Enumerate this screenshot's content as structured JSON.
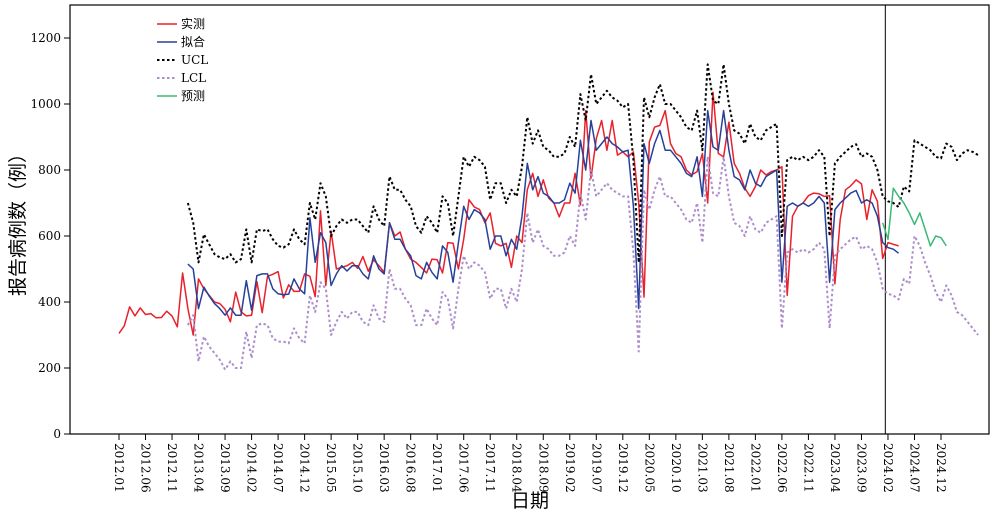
{
  "chart_data": {
    "type": "line",
    "xlabel": "日期",
    "ylabel": "报告病例数（例）",
    "ylim": [
      0,
      1300
    ],
    "yticks": [
      0,
      200,
      400,
      600,
      800,
      1000,
      1200
    ],
    "x_start": "2012.01",
    "x_end": "2024.12",
    "xtick_labels": [
      "2012.01",
      "2012.06",
      "2012.11",
      "2013.04",
      "2013.09",
      "2014.02",
      "2014.07",
      "2014.12",
      "2015.05",
      "2015.10",
      "2016.03",
      "2016.08",
      "2017.01",
      "2017.06",
      "2017.11",
      "2018.04",
      "2018.09",
      "2019.02",
      "2019.07",
      "2019.12",
      "2020.05",
      "2020.10",
      "2021.03",
      "2021.08",
      "2022.01",
      "2022.06",
      "2022.11",
      "2023.04",
      "2023.09",
      "2024.02",
      "2024.07",
      "2024.12"
    ],
    "forecast_start": "2024.01",
    "grid": false,
    "legend_position": "top-left",
    "series": [
      {
        "name": "实测",
        "color": "#e8212b",
        "dash": "solid",
        "start": "2012.01",
        "values": [
          305,
          328,
          385,
          358,
          382,
          362,
          365,
          352,
          353,
          372,
          358,
          325,
          488,
          380,
          300,
          470,
          440,
          420,
          400,
          395,
          378,
          340,
          430,
          370,
          358,
          360,
          462,
          368,
          478,
          484,
          492,
          412,
          452,
          432,
          432,
          485,
          478,
          416,
          676,
          450,
          615,
          500,
          505,
          510,
          520,
          502,
          538,
          493,
          528,
          510,
          490,
          640,
          600,
          612,
          560,
          530,
          520,
          505,
          488,
          530,
          528,
          488,
          580,
          578,
          500,
          590,
          710,
          688,
          680,
          640,
          670,
          578,
          570,
          578,
          505,
          600,
          580,
          740,
          790,
          720,
          770,
          715,
          700,
          658,
          700,
          700,
          790,
          694,
          980,
          775,
          895,
          950,
          860,
          950,
          845,
          855,
          840,
          855,
          700,
          415,
          885,
          930,
          935,
          980,
          880,
          850,
          840,
          800,
          785,
          795,
          850,
          700,
          1035,
          850,
          840,
          945,
          820,
          790,
          745,
          720,
          750,
          800,
          785,
          795,
          800,
          810,
          420,
          660,
          690,
          700,
          722,
          730,
          728,
          720,
          722,
          455,
          650,
          740,
          752,
          770,
          758,
          650,
          740,
          705,
          532,
          580,
          575,
          570
        ]
      },
      {
        "name": "拟合",
        "color": "#26419a",
        "dash": "solid",
        "start": "2013.02",
        "values": [
          515,
          500,
          380,
          445,
          418,
          395,
          380,
          360,
          382,
          360,
          360,
          465,
          375,
          480,
          485,
          485,
          440,
          425,
          422,
          424,
          470,
          440,
          425,
          655,
          520,
          610,
          580,
          450,
          485,
          510,
          494,
          510,
          510,
          485,
          470,
          540,
          500,
          485,
          640,
          590,
          590,
          560,
          540,
          480,
          470,
          520,
          490,
          470,
          570,
          550,
          460,
          580,
          690,
          650,
          680,
          670,
          650,
          560,
          600,
          600,
          540,
          590,
          560,
          660,
          820,
          740,
          780,
          730,
          720,
          700,
          700,
          710,
          760,
          730,
          890,
          800,
          950,
          860,
          880,
          900,
          880,
          870,
          855,
          860,
          690,
          380,
          880,
          820,
          880,
          920,
          860,
          860,
          840,
          820,
          790,
          780,
          840,
          720,
          980,
          870,
          860,
          980,
          860,
          780,
          770,
          740,
          800,
          760,
          750,
          780,
          790,
          800,
          460,
          690,
          700,
          690,
          700,
          690,
          700,
          720,
          700,
          460,
          680,
          700,
          715,
          730,
          738,
          700,
          710,
          700,
          660,
          580,
          565,
          560,
          548
        ]
      },
      {
        "name": "UCL",
        "color": "#000000",
        "dash": "dotted",
        "start": "2013.02",
        "values": [
          700,
          640,
          520,
          605,
          575,
          545,
          535,
          530,
          545,
          520,
          530,
          620,
          520,
          620,
          615,
          620,
          590,
          570,
          565,
          575,
          620,
          590,
          575,
          700,
          650,
          760,
          720,
          600,
          630,
          650,
          640,
          650,
          650,
          630,
          610,
          690,
          650,
          630,
          780,
          740,
          740,
          710,
          690,
          630,
          610,
          660,
          640,
          610,
          720,
          700,
          600,
          720,
          840,
          810,
          840,
          830,
          810,
          710,
          760,
          760,
          700,
          740,
          720,
          810,
          960,
          880,
          920,
          870,
          860,
          840,
          840,
          850,
          900,
          870,
          1030,
          950,
          1090,
          1000,
          1020,
          1040,
          1020,
          1010,
          990,
          1000,
          830,
          520,
          1020,
          960,
          1020,
          1060,
          1000,
          1000,
          980,
          960,
          930,
          920,
          980,
          860,
          1120,
          1010,
          1000,
          1120,
          1000,
          920,
          910,
          880,
          940,
          900,
          890,
          920,
          930,
          940,
          600,
          830,
          840,
          830,
          840,
          830,
          840,
          860,
          840,
          600,
          820,
          840,
          855,
          870,
          878,
          840,
          850,
          840,
          800,
          720,
          705,
          700,
          688,
          750,
          735,
          890,
          880,
          870,
          860,
          840,
          835,
          880,
          870,
          830,
          850,
          860,
          855,
          845
        ]
      },
      {
        "name": "LCL",
        "color": "#ad8ecc",
        "dash": "dotted",
        "start": "2013.02",
        "values": [
          330,
          360,
          220,
          295,
          265,
          245,
          225,
          195,
          220,
          200,
          200,
          310,
          230,
          330,
          335,
          330,
          290,
          280,
          280,
          275,
          320,
          290,
          275,
          420,
          370,
          460,
          440,
          300,
          340,
          370,
          350,
          370,
          370,
          340,
          330,
          390,
          350,
          340,
          500,
          440,
          440,
          410,
          390,
          330,
          330,
          380,
          350,
          330,
          430,
          410,
          320,
          440,
          540,
          500,
          520,
          510,
          490,
          410,
          440,
          440,
          380,
          440,
          400,
          500,
          670,
          580,
          620,
          570,
          560,
          540,
          540,
          550,
          600,
          570,
          730,
          650,
          800,
          720,
          740,
          760,
          740,
          730,
          720,
          720,
          550,
          250,
          740,
          680,
          740,
          780,
          720,
          720,
          700,
          680,
          650,
          640,
          700,
          580,
          840,
          730,
          720,
          840,
          720,
          640,
          630,
          600,
          660,
          620,
          610,
          640,
          650,
          660,
          320,
          550,
          560,
          550,
          560,
          550,
          560,
          580,
          560,
          320,
          540,
          560,
          575,
          590,
          598,
          560,
          570,
          560,
          520,
          440,
          425,
          420,
          408,
          470,
          455,
          600,
          570,
          520,
          480,
          430,
          400,
          450,
          420,
          370,
          360,
          340,
          320,
          300
        ]
      },
      {
        "name": "预测",
        "color": "#3cb877",
        "dash": "solid",
        "start": "2024.01",
        "values": [
          640,
          590,
          745,
          720,
          700,
          670,
          635,
          670,
          620,
          570,
          600,
          595,
          570
        ]
      }
    ]
  }
}
